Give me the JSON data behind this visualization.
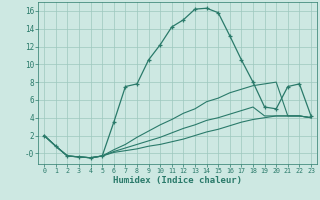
{
  "xlabel": "Humidex (Indice chaleur)",
  "background_color": "#cde8e2",
  "grid_color": "#9dc8be",
  "line_color": "#2a7a6a",
  "xlim": [
    -0.5,
    23.5
  ],
  "ylim": [
    -1.2,
    17.0
  ],
  "xticks": [
    0,
    1,
    2,
    3,
    4,
    5,
    6,
    7,
    8,
    9,
    10,
    11,
    12,
    13,
    14,
    15,
    16,
    17,
    18,
    19,
    20,
    21,
    22,
    23
  ],
  "yticks": [
    0,
    2,
    4,
    6,
    8,
    10,
    12,
    14,
    16
  ],
  "ytick_labels": [
    "-0",
    "2",
    "4",
    "6",
    "8",
    "10",
    "12",
    "14",
    "16"
  ],
  "curve1_x": [
    0,
    1,
    2,
    3,
    4,
    5,
    6,
    7,
    8,
    9,
    10,
    11,
    12,
    13,
    14,
    15,
    16,
    17,
    18,
    19,
    20,
    21,
    22,
    23
  ],
  "curve1_y": [
    2.0,
    0.8,
    -0.3,
    -0.4,
    -0.5,
    -0.3,
    3.5,
    7.5,
    7.8,
    10.5,
    12.2,
    14.2,
    15.0,
    16.2,
    16.3,
    15.8,
    13.2,
    10.5,
    8.0,
    5.2,
    5.0,
    7.5,
    7.8,
    4.2
  ],
  "curve2_x": [
    0,
    1,
    2,
    3,
    4,
    5,
    6,
    7,
    8,
    9,
    10,
    11,
    12,
    13,
    14,
    15,
    16,
    17,
    18,
    19,
    20,
    21,
    22,
    23
  ],
  "curve2_y": [
    2.0,
    0.8,
    -0.3,
    -0.4,
    -0.5,
    -0.3,
    0.4,
    1.0,
    1.8,
    2.5,
    3.2,
    3.8,
    4.5,
    5.0,
    5.8,
    6.2,
    6.8,
    7.2,
    7.6,
    7.8,
    8.0,
    4.2,
    4.2,
    4.0
  ],
  "curve3_x": [
    0,
    1,
    2,
    3,
    4,
    5,
    6,
    7,
    8,
    9,
    10,
    11,
    12,
    13,
    14,
    15,
    16,
    17,
    18,
    19,
    20,
    21,
    22,
    23
  ],
  "curve3_y": [
    2.0,
    0.8,
    -0.3,
    -0.4,
    -0.5,
    -0.3,
    0.2,
    0.6,
    1.0,
    1.4,
    1.8,
    2.3,
    2.8,
    3.2,
    3.7,
    4.0,
    4.4,
    4.8,
    5.2,
    4.2,
    4.2,
    4.2,
    4.2,
    4.0
  ],
  "curve4_x": [
    0,
    1,
    2,
    3,
    4,
    5,
    6,
    7,
    8,
    9,
    10,
    11,
    12,
    13,
    14,
    15,
    16,
    17,
    18,
    19,
    20,
    21,
    22,
    23
  ],
  "curve4_y": [
    2.0,
    0.8,
    -0.3,
    -0.4,
    -0.5,
    -0.3,
    0.1,
    0.3,
    0.5,
    0.8,
    1.0,
    1.3,
    1.6,
    2.0,
    2.4,
    2.7,
    3.1,
    3.5,
    3.8,
    4.0,
    4.2,
    4.2,
    4.2,
    4.0
  ]
}
